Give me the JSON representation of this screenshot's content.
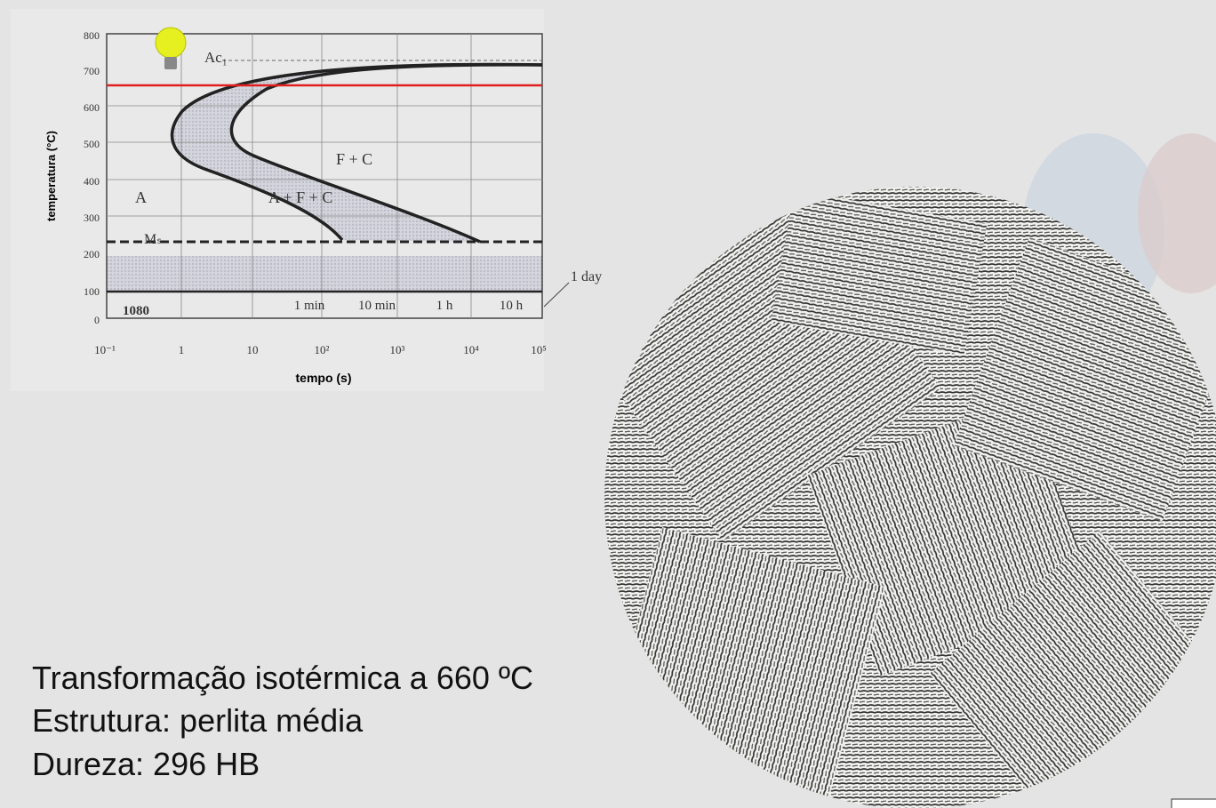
{
  "diagram": {
    "y_label": "temperatura (°C)",
    "x_label": "tempo (s)",
    "y_ticks": [
      "800",
      "700",
      "600",
      "500",
      "400",
      "300",
      "200",
      "100",
      "0"
    ],
    "x_ticks": [
      "10⁻¹",
      "1",
      "10",
      "10²",
      "10³",
      "10⁴",
      "10⁵"
    ],
    "labels": {
      "ac1": "Ac₁",
      "fc": "F + C",
      "a": "A",
      "afc": "A + F + C",
      "ms": "Mₛ",
      "steel": "1080"
    },
    "times": [
      "1 min",
      "10 min",
      "1 h",
      "10 h"
    ],
    "day": "1 day"
  },
  "caption": [
    "Transformação isotérmica a 660 ºC",
    "Estrutura: perlita média",
    "Dureza: 296 HB"
  ]
}
